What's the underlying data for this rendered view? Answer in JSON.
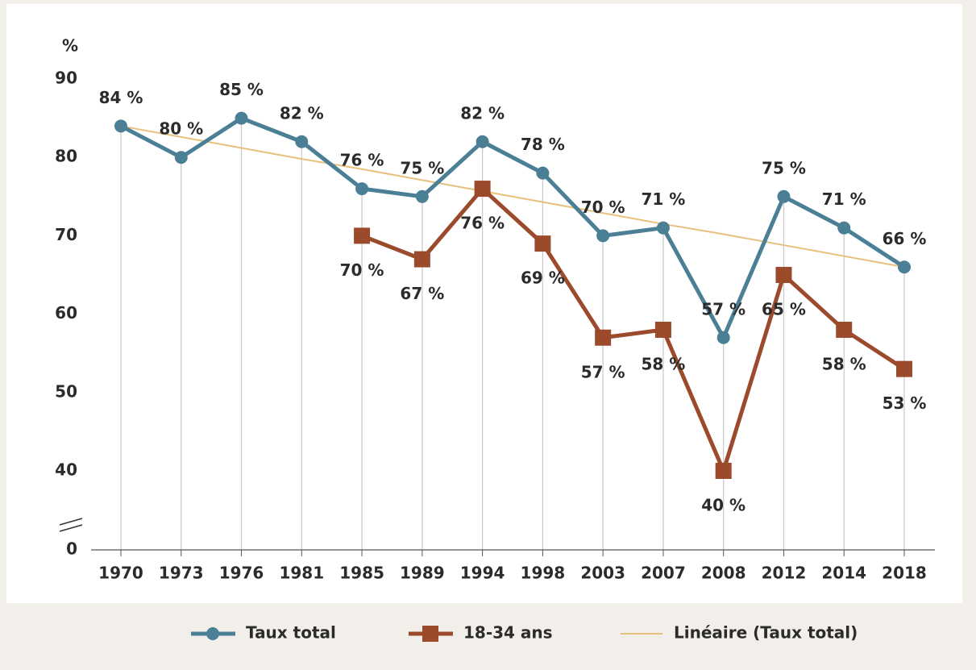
{
  "chart_data": {
    "type": "line",
    "y_unit": "%",
    "categories": [
      "1970",
      "1973",
      "1976",
      "1981",
      "1985",
      "1989",
      "1994",
      "1998",
      "2003",
      "2007",
      "2008",
      "2012",
      "2014",
      "2018"
    ],
    "series": [
      {
        "name": "Taux total",
        "color": "#4a7f96",
        "marker": "circle",
        "values": [
          84,
          80,
          85,
          82,
          76,
          75,
          82,
          78,
          70,
          71,
          57,
          75,
          71,
          66
        ],
        "value_labels": [
          "84 %",
          "80 %",
          "85 %",
          "82 %",
          "76 %",
          "75 %",
          "82 %",
          "78 %",
          "70 %",
          "71 %",
          "57 %",
          "75 %",
          "71 %",
          "66 %"
        ]
      },
      {
        "name": "18-34 ans",
        "color": "#9b4a2b",
        "marker": "square",
        "values": [
          null,
          null,
          null,
          null,
          70,
          67,
          76,
          69,
          57,
          58,
          40,
          65,
          58,
          53
        ],
        "value_labels": [
          null,
          null,
          null,
          null,
          "70 %",
          "67 %",
          "76 %",
          "69 %",
          "57 %",
          "58 %",
          "40 %",
          "65 %",
          "58 %",
          "53 %"
        ]
      },
      {
        "name": "Linéaire (Taux total)",
        "color": "#e8c07d",
        "marker": "none",
        "values": [
          84,
          82.6,
          81.2,
          79.8,
          78.5,
          77.1,
          75.7,
          74.3,
          72.9,
          71.5,
          70.2,
          68.8,
          67.4,
          66
        ]
      }
    ],
    "ylim": [
      0,
      90
    ],
    "axis_break": [
      0,
      40
    ],
    "yticks": [
      0,
      40,
      50,
      60,
      70,
      80,
      90
    ],
    "grid": true
  }
}
